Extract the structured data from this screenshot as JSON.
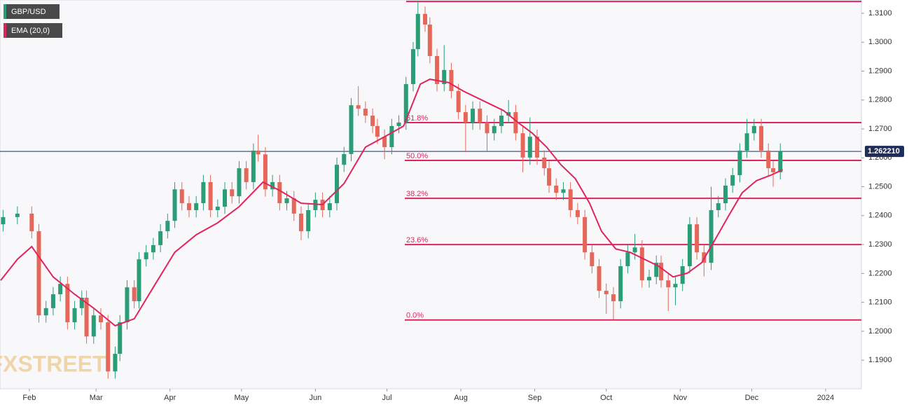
{
  "chart_data": {
    "type": "candlestick",
    "legend": "top-left",
    "watermark": "FXSTREET",
    "xlim": [
      19.7,
      381
    ],
    "ylim": [
      1.1801,
      1.3146
    ],
    "xticks": [
      {
        "value": 32,
        "label": "Feb"
      },
      {
        "value": 60,
        "label": "Mar"
      },
      {
        "value": 91,
        "label": "Apr"
      },
      {
        "value": 121,
        "label": "May"
      },
      {
        "value": 152,
        "label": "Jun"
      },
      {
        "value": 182,
        "label": "Jul"
      },
      {
        "value": 213,
        "label": "Aug"
      },
      {
        "value": 244,
        "label": "Sep"
      },
      {
        "value": 274,
        "label": "Oct"
      },
      {
        "value": 305,
        "label": "Nov"
      },
      {
        "value": 335,
        "label": "Dec"
      },
      {
        "value": 366,
        "label": "2024"
      }
    ],
    "yticks": [
      {
        "value": 1.19,
        "label": "1.1900"
      },
      {
        "value": 1.2,
        "label": "1.2000"
      },
      {
        "value": 1.21,
        "label": "1.2100"
      },
      {
        "value": 1.22,
        "label": "1.2200"
      },
      {
        "value": 1.23,
        "label": "1.2300"
      },
      {
        "value": 1.24,
        "label": "1.2400"
      },
      {
        "value": 1.25,
        "label": "1.2500"
      },
      {
        "value": 1.26,
        "label": "1.2600"
      },
      {
        "value": 1.27,
        "label": "1.2700"
      },
      {
        "value": 1.28,
        "label": "1.2800"
      },
      {
        "value": 1.29,
        "label": "1.2900"
      },
      {
        "value": 1.3,
        "label": "1.3000"
      },
      {
        "value": 1.31,
        "label": "1.3100"
      }
    ],
    "fib_color": "#e0245e",
    "high_line": 1.3141,
    "fib_levels": [
      {
        "label": "0.0%",
        "value": 1.2039
      },
      {
        "label": "23.6%",
        "value": 1.23
      },
      {
        "label": "38.2%",
        "value": 1.246
      },
      {
        "label": "50.0%",
        "value": 1.2591
      },
      {
        "label": "61.8%",
        "value": 1.2722
      }
    ],
    "last_price": {
      "value": 1.26221,
      "label": "1.262210",
      "color": "#1f2d5a"
    },
    "series": [
      {
        "name": "GBP/USD",
        "type": "candlestick",
        "color": "#2a9d77",
        "up_color": "#2a9d77",
        "down_color": "#e5675a",
        "x": [
          21,
          27,
          33,
          36,
          39,
          42,
          45,
          48,
          51,
          54,
          56,
          59,
          62,
          65,
          68,
          70,
          73,
          76,
          78,
          81,
          84,
          87,
          90,
          93,
          96,
          99,
          102,
          105,
          108,
          111,
          114,
          117,
          120,
          123,
          126,
          128,
          131,
          134,
          137,
          140,
          143,
          146,
          149,
          152,
          155,
          158,
          161,
          164,
          167,
          170,
          173,
          176,
          178,
          181,
          184,
          187,
          190,
          193,
          195,
          198,
          200,
          203,
          206,
          209,
          212,
          215,
          218,
          221,
          224,
          227,
          230,
          233,
          236,
          239,
          242,
          245,
          248,
          250,
          253,
          256,
          259,
          262,
          265,
          268,
          271,
          274,
          277,
          280,
          283,
          286,
          289,
          292,
          295,
          297,
          300,
          303,
          306,
          309,
          312,
          315,
          318,
          321,
          324,
          327,
          330,
          333,
          336,
          339,
          342,
          344,
          347
        ],
        "open": [
          1.237,
          1.2395,
          1.2407,
          1.2346,
          1.2055,
          1.208,
          1.2128,
          1.2164,
          1.2031,
          1.208,
          1.2116,
          1.1982,
          1.2055,
          1.2031,
          1.1861,
          1.1922,
          1.2031,
          1.2152,
          1.2104,
          1.2249,
          1.2273,
          1.2298,
          1.2346,
          1.2382,
          1.2491,
          1.2443,
          1.2419,
          1.2443,
          1.2516,
          1.2419,
          1.2431,
          1.2491,
          1.2467,
          1.2564,
          1.2516,
          1.2625,
          1.2612,
          1.2491,
          1.2516,
          1.2443,
          1.246,
          1.2407,
          1.2346,
          1.2419,
          1.2455,
          1.2419,
          1.2443,
          1.2576,
          1.2613,
          1.2782,
          1.277,
          1.2746,
          1.271,
          1.2673,
          1.2637,
          1.271,
          1.2722,
          1.2855,
          1.2976,
          1.3098,
          1.3061,
          1.2952,
          1.2855,
          1.2904,
          1.2831,
          1.2758,
          1.2722,
          1.277,
          1.2722,
          1.2685,
          1.271,
          1.2746,
          1.2758,
          1.2685,
          1.2601,
          1.2673,
          1.2601,
          1.2564,
          1.2504,
          1.2479,
          1.2491,
          1.2419,
          1.2395,
          1.2273,
          1.2225,
          1.214,
          1.2128,
          1.2104,
          1.2225,
          1.2273,
          1.229,
          1.2176,
          1.2188,
          1.2237,
          1.2176,
          1.2152,
          1.2164,
          1.2225,
          1.237,
          1.2273,
          1.2237,
          1.2419,
          1.2443,
          1.2504,
          1.254,
          1.2625,
          1.2685,
          1.271,
          1.2625,
          1.2564,
          1.255
        ],
        "high": [
          1.242,
          1.2432,
          1.2432,
          1.2371,
          1.2105,
          1.2153,
          1.2189,
          1.2189,
          1.2105,
          1.2141,
          1.2141,
          1.208,
          1.208,
          1.2056,
          1.1947,
          1.2056,
          1.2177,
          1.2177,
          1.2274,
          1.2298,
          1.2323,
          1.2371,
          1.2407,
          1.2516,
          1.2516,
          1.2468,
          1.2468,
          1.2541,
          1.2541,
          1.2456,
          1.2516,
          1.2516,
          1.2589,
          1.2589,
          1.265,
          1.268,
          1.2637,
          1.2541,
          1.2541,
          1.2485,
          1.2485,
          1.2432,
          1.2444,
          1.248,
          1.248,
          1.2468,
          1.2601,
          1.2638,
          1.2807,
          1.2848,
          1.2795,
          1.2771,
          1.2735,
          1.2698,
          1.2735,
          1.2747,
          1.288,
          1.3001,
          1.3142,
          1.3123,
          1.3086,
          1.2977,
          1.299,
          1.2929,
          1.2856,
          1.2783,
          1.2795,
          1.2795,
          1.2747,
          1.2735,
          1.2771,
          1.28,
          1.2783,
          1.271,
          1.274,
          1.2698,
          1.2626,
          1.2589,
          1.2529,
          1.2516,
          1.2516,
          1.2444,
          1.242,
          1.2298,
          1.225,
          1.2165,
          1.2153,
          1.225,
          1.2298,
          1.2337,
          1.2315,
          1.2213,
          1.2262,
          1.2262,
          1.2201,
          1.2189,
          1.225,
          1.2395,
          1.2395,
          1.2298,
          1.25,
          1.2468,
          1.2529,
          1.2565,
          1.265,
          1.2735,
          1.2735,
          1.2735,
          1.265,
          1.2589,
          1.265
        ],
        "low": [
          1.2345,
          1.237,
          1.2321,
          1.203,
          1.203,
          1.2055,
          1.2103,
          1.2006,
          1.2006,
          1.2055,
          1.1957,
          1.1957,
          1.2006,
          1.1836,
          1.1836,
          1.1897,
          1.2006,
          1.2079,
          1.2079,
          1.2224,
          1.2248,
          1.2273,
          1.2321,
          1.2357,
          1.2418,
          1.2394,
          1.2394,
          1.2418,
          1.2394,
          1.2394,
          1.2406,
          1.2442,
          1.2442,
          1.2491,
          1.2491,
          1.2587,
          1.2466,
          1.2466,
          1.2418,
          1.2418,
          1.2382,
          1.2315,
          1.2321,
          1.2394,
          1.2394,
          1.2394,
          1.2418,
          1.2551,
          1.2588,
          1.2745,
          1.2721,
          1.2685,
          1.2648,
          1.2595,
          1.2612,
          1.2685,
          1.2697,
          1.283,
          1.2951,
          1.3036,
          1.2927,
          1.283,
          1.283,
          1.2806,
          1.2733,
          1.262,
          1.2697,
          1.2697,
          1.262,
          1.266,
          1.2685,
          1.2721,
          1.266,
          1.255,
          1.2576,
          1.2576,
          1.2539,
          1.2479,
          1.2454,
          1.2454,
          1.2394,
          1.237,
          1.2248,
          1.22,
          1.2115,
          1.206,
          1.204,
          1.2079,
          1.22,
          1.2248,
          1.2151,
          1.2151,
          1.2163,
          1.2151,
          1.207,
          1.209,
          1.2139,
          1.22,
          1.2248,
          1.219,
          1.2212,
          1.2394,
          1.2418,
          1.2479,
          1.2515,
          1.26,
          1.266,
          1.26,
          1.2539,
          1.25,
          1.2525
        ],
        "close": [
          1.2395,
          1.2407,
          1.2346,
          1.2055,
          1.208,
          1.2128,
          1.2164,
          1.2031,
          1.208,
          1.2116,
          1.1982,
          1.2055,
          1.2031,
          1.1861,
          1.1922,
          1.2031,
          1.2152,
          1.2104,
          1.2249,
          1.2273,
          1.2298,
          1.2346,
          1.2382,
          1.2491,
          1.2443,
          1.2419,
          1.2443,
          1.2516,
          1.2419,
          1.2431,
          1.2491,
          1.2467,
          1.2564,
          1.2516,
          1.2625,
          1.2612,
          1.2491,
          1.2516,
          1.2443,
          1.246,
          1.2407,
          1.2346,
          1.2419,
          1.2455,
          1.2419,
          1.2443,
          1.2576,
          1.2613,
          1.2782,
          1.277,
          1.2746,
          1.271,
          1.2673,
          1.2637,
          1.271,
          1.2722,
          1.2855,
          1.2976,
          1.3098,
          1.3061,
          1.2952,
          1.2855,
          1.2904,
          1.2831,
          1.2758,
          1.2722,
          1.277,
          1.2722,
          1.2685,
          1.271,
          1.2746,
          1.2758,
          1.2685,
          1.2601,
          1.2673,
          1.2601,
          1.2564,
          1.2504,
          1.2479,
          1.2491,
          1.2419,
          1.2395,
          1.2273,
          1.2225,
          1.214,
          1.2128,
          1.2104,
          1.2225,
          1.2273,
          1.229,
          1.2176,
          1.2188,
          1.2237,
          1.2176,
          1.2152,
          1.2164,
          1.2225,
          1.237,
          1.2273,
          1.2237,
          1.2419,
          1.2443,
          1.2504,
          1.254,
          1.2625,
          1.2685,
          1.271,
          1.2625,
          1.2564,
          1.255,
          1.2622
        ]
      },
      {
        "name": "EMA (20,0)",
        "type": "line",
        "color": "#e0245e",
        "x": [
          20,
          27,
          33,
          42,
          51,
          59,
          68,
          76,
          84,
          93,
          102,
          111,
          120,
          130,
          137,
          146,
          155,
          164,
          173,
          181,
          189,
          196,
          200,
          208,
          214,
          223,
          231,
          237,
          243,
          249,
          255,
          261,
          267,
          272,
          278,
          284,
          290,
          296,
          302,
          308,
          314,
          320,
          325,
          331,
          337,
          343,
          348
        ],
        "values": [
          1.2176,
          1.2249,
          1.2293,
          1.2188,
          1.2128,
          1.208,
          1.2019,
          1.2043,
          1.2152,
          1.2273,
          1.2334,
          1.2375,
          1.2431,
          1.2516,
          1.2487,
          1.2443,
          1.2438,
          1.2511,
          1.2637,
          1.2673,
          1.271,
          1.2855,
          1.2872,
          1.286,
          1.2831,
          1.2795,
          1.2763,
          1.2722,
          1.2685,
          1.2637,
          1.2576,
          1.2528,
          1.2443,
          1.2346,
          1.2285,
          1.2273,
          1.2249,
          1.2225,
          1.2188,
          1.2201,
          1.2237,
          1.2322,
          1.2395,
          1.2479,
          1.2521,
          1.254,
          1.2559
        ]
      }
    ]
  }
}
